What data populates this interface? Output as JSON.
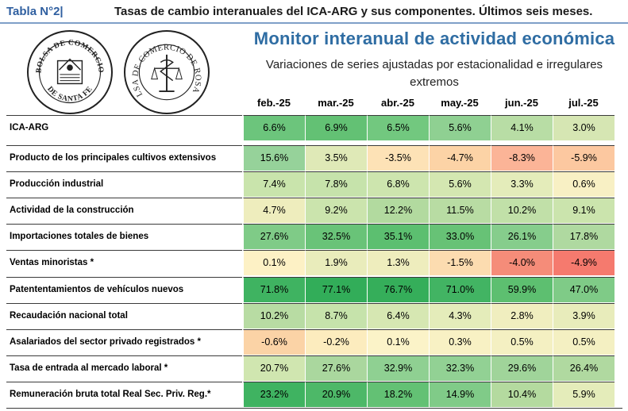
{
  "header": {
    "table_label": "Tabla N°2|",
    "table_title": "Tasas de cambio interanuales del ICA-ARG y sus componentes. Últimos seis meses."
  },
  "logos": {
    "left": {
      "text_top": "BOLSA DE COMERCIO",
      "text_bottom": "DE SANTA FE"
    },
    "right": {
      "text": "BOLSA DE COMERCIO DE ROSARIO"
    }
  },
  "heading": {
    "title": "Monitor interanual de actividad económica",
    "subtitle_line1": "Variaciones de series ajustadas por estacionalidad e irregulares",
    "subtitle_line2": "extremos"
  },
  "columns": [
    "feb.-25",
    "mar.-25",
    "abr.-25",
    "may.-25",
    "jun.-25",
    "jul.-25"
  ],
  "rows": [
    {
      "label": "ICA-ARG",
      "values": [
        "6.6%",
        "6.9%",
        "6.5%",
        "5.6%",
        "4.1%",
        "3.0%"
      ],
      "colors": [
        "#6cc57c",
        "#63c174",
        "#72c87f",
        "#8fd092",
        "#b8dda5",
        "#d6e6b3"
      ]
    },
    {
      "label": "Producto de los principales cultivos extensivos",
      "values": [
        "15.6%",
        "3.5%",
        "-3.5%",
        "-4.7%",
        "-8.3%",
        "-5.9%"
      ],
      "colors": [
        "#96d29a",
        "#dfe9b7",
        "#fde2b6",
        "#fcd3a6",
        "#fbb497",
        "#fcc8a0"
      ]
    },
    {
      "label": "Producción industrial",
      "values": [
        "7.4%",
        "7.8%",
        "6.8%",
        "5.6%",
        "3.3%",
        "0.6%"
      ],
      "colors": [
        "#c9e4ac",
        "#c6e3ab",
        "#cde5ae",
        "#d4e7b1",
        "#e4ecba",
        "#f8f0c4"
      ]
    },
    {
      "label": "Actividad de la construcción",
      "values": [
        "4.7%",
        "9.2%",
        "12.2%",
        "11.5%",
        "10.2%",
        "9.1%"
      ],
      "colors": [
        "#eeedbd",
        "#cbe4ad",
        "#b2da9f",
        "#b8dca3",
        "#c1e0a8",
        "#cbe4ad"
      ]
    },
    {
      "label": "Importaciones totales de bienes",
      "values": [
        "27.6%",
        "32.5%",
        "35.1%",
        "33.0%",
        "26.1%",
        "17.8%"
      ],
      "colors": [
        "#7fcb87",
        "#69c378",
        "#5cbf70",
        "#67c276",
        "#86cd8c",
        "#afd9a0"
      ]
    },
    {
      "label": "Ventas minoristas *",
      "values": [
        "0.1%",
        "1.9%",
        "1.3%",
        "-1.5%",
        "-4.0%",
        "-4.9%"
      ],
      "colors": [
        "#fdf1c5",
        "#e9ecbb",
        "#eeedbd",
        "#fcdcb0",
        "#f58c79",
        "#f57a6e"
      ]
    },
    {
      "label": "Patententamientos de vehículos nuevos",
      "values": [
        "71.8%",
        "77.1%",
        "76.7%",
        "71.0%",
        "59.9%",
        "47.0%"
      ],
      "colors": [
        "#3fb361",
        "#32ad59",
        "#35ae5a",
        "#42b463",
        "#5dbf70",
        "#7fcb87"
      ]
    },
    {
      "label": "Recaudación nacional total",
      "values": [
        "10.2%",
        "8.7%",
        "6.4%",
        "4.3%",
        "2.8%",
        "3.9%"
      ],
      "colors": [
        "#b8dca3",
        "#c6e3ab",
        "#d6e7b2",
        "#e4ecba",
        "#f0eebf",
        "#e8ecbb"
      ]
    },
    {
      "label": "Asalariados del sector privado registrados *",
      "values": [
        "-0.6%",
        "-0.2%",
        "0.1%",
        "0.3%",
        "0.5%",
        "0.5%"
      ],
      "colors": [
        "#fbd3a6",
        "#fcecbe",
        "#fbf3c8",
        "#f8f1c4",
        "#f4f0c2",
        "#f4f0c2"
      ]
    },
    {
      "label": "Tasa de entrada al mercado laboral *",
      "values": [
        "20.7%",
        "27.6%",
        "32.9%",
        "32.3%",
        "29.6%",
        "26.4%"
      ],
      "colors": [
        "#d0e6b0",
        "#aad79e",
        "#8fd092",
        "#92d194",
        "#a0d49a",
        "#b0d9a0"
      ]
    },
    {
      "label": "Remuneración bruta total Real Sec. Priv. Reg.*",
      "values": [
        "23.2%",
        "20.9%",
        "18.2%",
        "14.9%",
        "10.4%",
        "5.9%"
      ],
      "colors": [
        "#3fb361",
        "#4db868",
        "#63c174",
        "#80cb88",
        "#b4da9f",
        "#e4ecba"
      ]
    }
  ]
}
